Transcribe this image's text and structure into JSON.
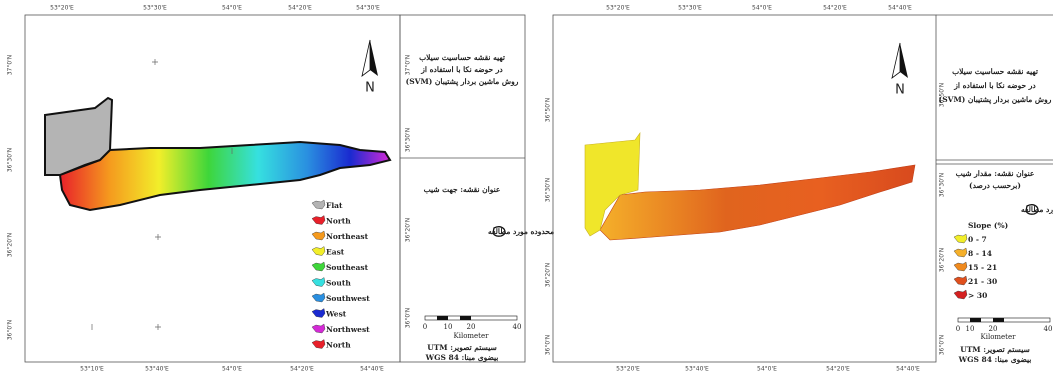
{
  "left_panel": {
    "top_labels": [
      "53°20'E",
      "53°30'E",
      "54°0'E",
      "54°20'E",
      "54°30'E"
    ],
    "bottom_labels": [
      "53°10'E",
      "53°40'E",
      "54°0'E",
      "54°20'E",
      "54°40'E"
    ],
    "left_labels": [
      "37°0'N",
      "36°30'N",
      "36°20'N",
      "36°0'N"
    ],
    "right_labels": [
      "37°0'N",
      "36°30'N",
      "36°20'N",
      "36°0'N"
    ],
    "north": "N",
    "title_lines": [
      "تهیه نقشه حساسیت سیلاب",
      "در حوضه نکا با استفاده از",
      "روش ماشین بردار پشتیبان (SVM)"
    ],
    "map_title": "عنوان نقشه: جهت شیب",
    "study_area": "محدوده مورد مطالعه",
    "legend": [
      {
        "label": "Flat",
        "color": "#b4b4b4"
      },
      {
        "label": "North",
        "color": "#e8202a"
      },
      {
        "label": "Northeast",
        "color": "#f59a1e"
      },
      {
        "label": "East",
        "color": "#f2ee2a"
      },
      {
        "label": "Southeast",
        "color": "#3ed63a"
      },
      {
        "label": "South",
        "color": "#36e0e0"
      },
      {
        "label": "Southwest",
        "color": "#2a8fe0"
      },
      {
        "label": "West",
        "color": "#1a2ad0"
      },
      {
        "label": "Northwest",
        "color": "#d42ad6"
      },
      {
        "label": "North",
        "color": "#e8202a"
      }
    ],
    "scale": {
      "ticks": [
        "0",
        "10",
        "20",
        "40"
      ],
      "unit": "Kilometer"
    },
    "projection": "سیستم تصویر: UTM",
    "datum": "بیضوی مبنا: WGS 84"
  },
  "right_panel": {
    "top_labels": [
      "53°20'E",
      "53°30'E",
      "54°0'E",
      "54°20'E",
      "54°40'E"
    ],
    "bottom_labels": [
      "53°20'E",
      "53°40'E",
      "54°0'E",
      "54°20'E",
      "54°40'E"
    ],
    "left_labels": [
      "36°50'N",
      "36°30'N",
      "36°20'N",
      "36°0'N"
    ],
    "right_labels": [
      "36°50'N",
      "36°30'N",
      "36°20'N",
      "36°0'N"
    ],
    "north": "N",
    "title_lines": [
      "تهیه نقشه حساسیت سیلاب",
      "در حوضه نکا با استفاده از",
      "روش ماشین بردار پشتیبان (SVM)"
    ],
    "map_title": "عنوان نقشه: مقدار شیب",
    "map_subtitle": "(برحسب درصد)",
    "study_area": "محدوده مورد مطالعه",
    "legend_title": "Slope (%)",
    "legend": [
      {
        "label": "0 - 7",
        "color": "#f2ee2a"
      },
      {
        "label": "8 - 14",
        "color": "#f5b02a"
      },
      {
        "label": "15 - 21",
        "color": "#f08a1e"
      },
      {
        "label": "21 - 30",
        "color": "#e0501e"
      },
      {
        "label": "> 30",
        "color": "#d42020"
      }
    ],
    "scale": {
      "ticks": [
        "0",
        "10",
        "20",
        "40"
      ],
      "unit": "Kilometer"
    },
    "projection": "سیستم تصویر: UTM",
    "datum": "بیضوی مبنا: WGS 84"
  }
}
